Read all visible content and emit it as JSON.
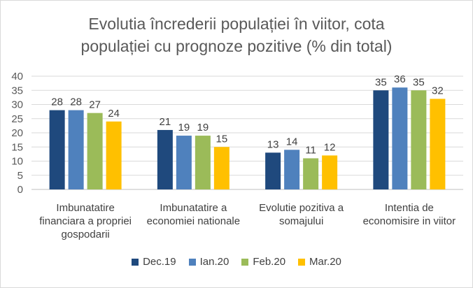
{
  "chart_data": {
    "type": "bar",
    "title_lines": [
      "Evolutia încrederii populației în viitor, cota",
      "populației cu prognoze pozitive (% din total)"
    ],
    "categories": [
      [
        "Imbunatatire",
        "financiara a propriei",
        "gospodarii"
      ],
      [
        "Imbunatatire a",
        "economiei nationale"
      ],
      [
        "Evolutie pozitiva a",
        "somajului"
      ],
      [
        "Intentia de",
        "economisire in viitor"
      ]
    ],
    "series": [
      {
        "name": "Dec.19",
        "color": "#1f497d",
        "values": [
          28,
          21,
          13,
          35
        ]
      },
      {
        "name": "Ian.20",
        "color": "#4f81bd",
        "values": [
          28,
          19,
          14,
          36
        ]
      },
      {
        "name": "Feb.20",
        "color": "#9bbb59",
        "values": [
          27,
          19,
          11,
          35
        ]
      },
      {
        "name": "Mar.20",
        "color": "#ffc000",
        "values": [
          24,
          15,
          12,
          32
        ]
      }
    ],
    "y_ticks": [
      0,
      5,
      10,
      15,
      20,
      25,
      30,
      35,
      40
    ],
    "ylim": [
      0,
      40
    ],
    "grid": true,
    "legend_position": "bottom"
  }
}
